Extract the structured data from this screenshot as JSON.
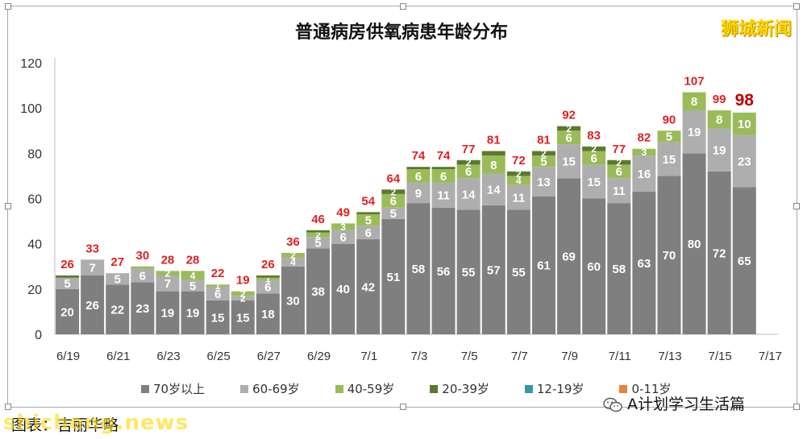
{
  "title": "普通病房供氧病患年龄分布",
  "logo": "狮城新闻",
  "wechat_label": "A计划学习生活篇",
  "source_text": "图表：吉丽华略",
  "watermark_text": "shicheng.news",
  "icons": {
    "wechat": "wechat-icon"
  },
  "chart_data": {
    "type": "bar",
    "stacked": true,
    "categories": [
      "6/19",
      "6/20",
      "6/21",
      "6/22",
      "6/23",
      "6/24",
      "6/25",
      "6/26",
      "6/27",
      "6/28",
      "6/29",
      "6/30",
      "7/1",
      "7/2",
      "7/3",
      "7/4",
      "7/5",
      "7/6",
      "7/7",
      "7/8",
      "7/9",
      "7/10",
      "7/11",
      "7/12",
      "7/13",
      "7/14",
      "7/15",
      "7/16"
    ],
    "x_tick_labels": [
      "6/19",
      "6/21",
      "6/23",
      "6/25",
      "6/27",
      "6/29",
      "7/1",
      "7/3",
      "7/5",
      "7/7",
      "7/9",
      "7/11",
      "7/13",
      "7/15",
      "7/17"
    ],
    "ylim": [
      0,
      120
    ],
    "yticks": [
      0,
      20,
      40,
      60,
      80,
      100,
      120
    ],
    "grid": false,
    "legend_position": "bottom",
    "series": [
      {
        "name": "70岁以上",
        "color": "#7f7f7f",
        "values": [
          20,
          26,
          22,
          23,
          19,
          19,
          15,
          15,
          18,
          30,
          38,
          40,
          42,
          51,
          58,
          56,
          55,
          57,
          55,
          61,
          69,
          60,
          58,
          63,
          70,
          80,
          72,
          65
        ]
      },
      {
        "name": "60-69岁",
        "color": "#aeaeae",
        "values": [
          5,
          7,
          5,
          6,
          7,
          5,
          6,
          2,
          6,
          4,
          5,
          6,
          6,
          5,
          9,
          11,
          14,
          14,
          11,
          13,
          15,
          15,
          11,
          16,
          15,
          19,
          19,
          23
        ]
      },
      {
        "name": "40-59岁",
        "color": "#9bbb59",
        "values": [
          0,
          0,
          0,
          1,
          2,
          4,
          1,
          2,
          1,
          2,
          2,
          3,
          5,
          6,
          6,
          6,
          6,
          8,
          4,
          5,
          6,
          6,
          6,
          3,
          5,
          8,
          8,
          10
        ]
      },
      {
        "name": "20-39岁",
        "color": "#5a7a2e",
        "values": [
          1,
          0,
          0,
          0,
          0,
          0,
          0,
          0,
          1,
          0,
          1,
          0,
          1,
          2,
          1,
          1,
          2,
          2,
          2,
          2,
          2,
          2,
          2,
          0,
          0,
          0,
          0,
          0
        ]
      },
      {
        "name": "12-19岁",
        "color": "#3399aa",
        "values": [
          0,
          0,
          0,
          0,
          0,
          0,
          0,
          0,
          0,
          0,
          0,
          0,
          0,
          0,
          0,
          0,
          0,
          0,
          0,
          0,
          0,
          0,
          0,
          0,
          0,
          0,
          0,
          0
        ]
      },
      {
        "name": "0-11岁",
        "color": "#e8823a",
        "values": [
          0,
          0,
          0,
          0,
          0,
          0,
          0,
          0,
          0,
          0,
          0,
          0,
          0,
          0,
          0,
          0,
          0,
          0,
          0,
          0,
          0,
          0,
          0,
          0,
          0,
          0,
          0,
          0
        ]
      }
    ],
    "segment_labels": [
      [
        "20",
        "5",
        "",
        ""
      ],
      [
        "26",
        "7",
        "",
        ""
      ],
      [
        "22",
        "5",
        "",
        ""
      ],
      [
        "23",
        "6",
        "",
        ""
      ],
      [
        "19",
        "7",
        "2",
        ""
      ],
      [
        "19",
        "5",
        "4",
        ""
      ],
      [
        "15",
        "6",
        "1",
        ""
      ],
      [
        "15",
        "2",
        "2",
        ""
      ],
      [
        "18",
        "6",
        "1",
        ""
      ],
      [
        "30",
        "4",
        "2",
        ""
      ],
      [
        "38",
        "5",
        "2",
        ""
      ],
      [
        "40",
        "6",
        "3",
        ""
      ],
      [
        "42",
        "6",
        "5",
        ""
      ],
      [
        "51",
        "5",
        "6",
        "2"
      ],
      [
        "58",
        "9",
        "6",
        ""
      ],
      [
        "56",
        "11",
        "6",
        ""
      ],
      [
        "55",
        "14",
        "6",
        "2"
      ],
      [
        "57",
        "14",
        "8",
        ""
      ],
      [
        "55",
        "11",
        "4",
        "2"
      ],
      [
        "61",
        "13",
        "5",
        "2"
      ],
      [
        "69",
        "15",
        "6",
        "2"
      ],
      [
        "60",
        "15",
        "6",
        "2"
      ],
      [
        "58",
        "11",
        "6",
        "2"
      ],
      [
        "63",
        "16",
        "3",
        ""
      ],
      [
        "70",
        "15",
        "5",
        ""
      ],
      [
        "80",
        "19",
        "8",
        ""
      ],
      [
        "72",
        "19",
        "8",
        ""
      ],
      [
        "65",
        "23",
        "10",
        ""
      ]
    ],
    "totals": [
      26,
      33,
      27,
      30,
      28,
      28,
      22,
      19,
      26,
      36,
      46,
      49,
      54,
      64,
      74,
      74,
      77,
      81,
      72,
      81,
      92,
      83,
      77,
      82,
      90,
      107,
      99,
      98
    ],
    "total_color": "#e02020",
    "highlight_total_index": 27
  }
}
